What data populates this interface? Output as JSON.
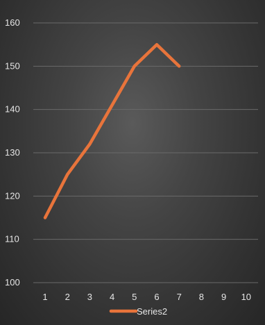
{
  "chart_data": {
    "type": "line",
    "x": [
      1,
      2,
      3,
      4,
      5,
      6,
      7,
      8,
      9,
      10
    ],
    "series": [
      {
        "name": "Series2",
        "color": "#e8743b",
        "values": [
          115,
          125,
          132,
          141,
          150,
          155,
          150,
          null,
          null,
          null
        ]
      }
    ],
    "xlabel": "",
    "ylabel": "",
    "ylim": [
      100,
      160
    ],
    "yticks": [
      100,
      110,
      120,
      130,
      140,
      150,
      160
    ],
    "xticks": [
      1,
      2,
      3,
      4,
      5,
      6,
      7,
      8,
      9,
      10
    ],
    "grid": true,
    "legend_position": "bottom"
  }
}
